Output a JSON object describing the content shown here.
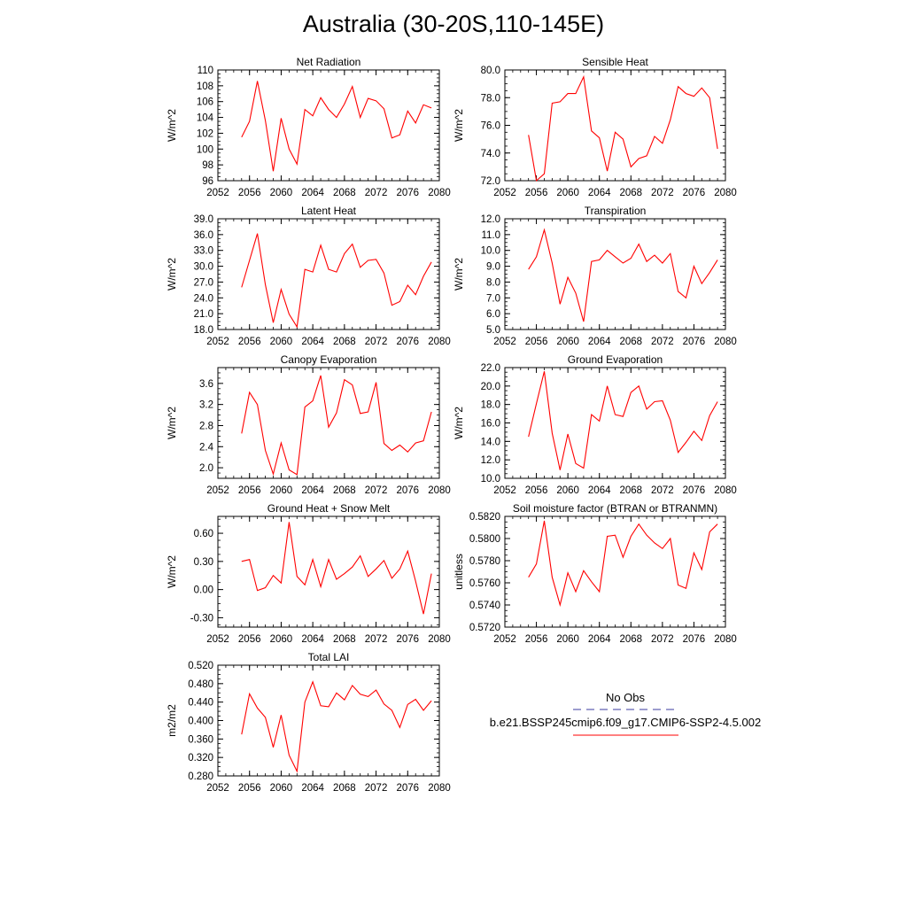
{
  "title": "Australia (30-20S,110-145E)",
  "colors": {
    "model": "#ff0000",
    "obs": "#3b3b9f",
    "axis": "#000000"
  },
  "legend": {
    "obs_label": "No Obs",
    "model_label": "b.e21.BSSP245cmip6.f09_g17.CMIP6-SSP2-4.5.002"
  },
  "chart_data": [
    {
      "type": "line",
      "title": "Net Radiation",
      "ylabel": "W/m^2",
      "xlim": [
        2052,
        2080
      ],
      "ylim": [
        96,
        110
      ],
      "x_ticks": [
        "2052",
        "2056",
        "2060",
        "2064",
        "2068",
        "2072",
        "2076",
        "2080"
      ],
      "y_ticks": [
        "96",
        "98",
        "100",
        "102",
        "104",
        "106",
        "108",
        "110"
      ],
      "series": [
        {
          "x": [
            2055,
            2056,
            2057,
            2058,
            2059,
            2060,
            2061,
            2062,
            2063,
            2064,
            2065,
            2066,
            2067,
            2068,
            2069,
            2070,
            2071,
            2072,
            2073,
            2074,
            2075,
            2076,
            2077,
            2078,
            2079
          ],
          "values": [
            101.5,
            103.5,
            108.6,
            103.6,
            97.2,
            103.9,
            100.0,
            98.1,
            105.0,
            104.2,
            106.5,
            105.0,
            104.0,
            105.7,
            107.9,
            104.0,
            106.4,
            106.1,
            105.1,
            101.4,
            101.8,
            104.8,
            103.3,
            105.6,
            105.2
          ]
        }
      ]
    },
    {
      "type": "line",
      "title": "Sensible Heat",
      "ylabel": "W/m^2",
      "xlim": [
        2052,
        2080
      ],
      "ylim": [
        72.0,
        80.0
      ],
      "x_ticks": [
        "2052",
        "2056",
        "2060",
        "2064",
        "2068",
        "2072",
        "2076",
        "2080"
      ],
      "y_ticks": [
        "72.0",
        "74.0",
        "76.0",
        "78.0",
        "80.0"
      ],
      "series": [
        {
          "x": [
            2055,
            2056,
            2057,
            2058,
            2059,
            2060,
            2061,
            2062,
            2063,
            2064,
            2065,
            2066,
            2067,
            2068,
            2069,
            2070,
            2071,
            2072,
            2073,
            2074,
            2075,
            2076,
            2077,
            2078,
            2079
          ],
          "values": [
            75.3,
            72.0,
            72.5,
            77.6,
            77.7,
            78.3,
            78.3,
            79.5,
            75.6,
            75.1,
            72.7,
            75.5,
            75.0,
            73.0,
            73.6,
            73.8,
            75.2,
            74.7,
            76.4,
            78.8,
            78.3,
            78.1,
            78.7,
            78.0,
            74.3
          ]
        }
      ]
    },
    {
      "type": "line",
      "title": "Latent Heat",
      "ylabel": "W/m^2",
      "xlim": [
        2052,
        2080
      ],
      "ylim": [
        18.0,
        39.0
      ],
      "x_ticks": [
        "2052",
        "2056",
        "2060",
        "2064",
        "2068",
        "2072",
        "2076",
        "2080"
      ],
      "y_ticks": [
        "18.0",
        "21.0",
        "24.0",
        "27.0",
        "30.0",
        "33.0",
        "36.0",
        "39.0"
      ],
      "series": [
        {
          "x": [
            2055,
            2056,
            2057,
            2058,
            2059,
            2060,
            2061,
            2062,
            2063,
            2064,
            2065,
            2066,
            2067,
            2068,
            2069,
            2070,
            2071,
            2072,
            2073,
            2074,
            2075,
            2076,
            2077,
            2078,
            2079
          ],
          "values": [
            26.0,
            31.1,
            36.2,
            26.5,
            19.3,
            25.6,
            20.9,
            18.5,
            29.4,
            28.9,
            34.0,
            29.4,
            28.9,
            32.4,
            34.2,
            29.8,
            31.1,
            31.3,
            28.7,
            22.6,
            23.3,
            26.4,
            24.6,
            28.1,
            30.8
          ]
        }
      ]
    },
    {
      "type": "line",
      "title": "Transpiration",
      "ylabel": "W/m^2",
      "xlim": [
        2052,
        2080
      ],
      "ylim": [
        5.0,
        12.0
      ],
      "x_ticks": [
        "2052",
        "2056",
        "2060",
        "2064",
        "2068",
        "2072",
        "2076",
        "2080"
      ],
      "y_ticks": [
        "5.0",
        "6.0",
        "7.0",
        "8.0",
        "9.0",
        "10.0",
        "11.0",
        "12.0"
      ],
      "series": [
        {
          "x": [
            2055,
            2056,
            2057,
            2058,
            2059,
            2060,
            2061,
            2062,
            2063,
            2064,
            2065,
            2066,
            2067,
            2068,
            2069,
            2070,
            2071,
            2072,
            2073,
            2074,
            2075,
            2076,
            2077,
            2078,
            2079
          ],
          "values": [
            8.8,
            9.6,
            11.3,
            9.2,
            6.6,
            8.3,
            7.3,
            5.5,
            9.3,
            9.4,
            10.0,
            9.6,
            9.2,
            9.5,
            10.4,
            9.3,
            9.7,
            9.2,
            9.8,
            7.4,
            7.0,
            9.0,
            7.9,
            8.6,
            9.4
          ]
        }
      ]
    },
    {
      "type": "line",
      "title": "Canopy Evaporation",
      "ylabel": "W/m^2",
      "xlim": [
        2052,
        2080
      ],
      "ylim": [
        1.8,
        3.9
      ],
      "x_ticks": [
        "2052",
        "2056",
        "2060",
        "2064",
        "2068",
        "2072",
        "2076",
        "2080"
      ],
      "y_ticks": [
        "2.0",
        "2.4",
        "2.8",
        "3.2",
        "3.6"
      ],
      "series": [
        {
          "x": [
            2055,
            2056,
            2057,
            2058,
            2059,
            2060,
            2061,
            2062,
            2063,
            2064,
            2065,
            2066,
            2067,
            2068,
            2069,
            2070,
            2071,
            2072,
            2073,
            2074,
            2075,
            2076,
            2077,
            2078,
            2079
          ],
          "values": [
            2.65,
            3.43,
            3.2,
            2.33,
            1.88,
            2.47,
            1.96,
            1.87,
            3.15,
            3.27,
            3.75,
            2.77,
            3.04,
            3.67,
            3.57,
            3.03,
            3.06,
            3.62,
            2.46,
            2.33,
            2.43,
            2.3,
            2.47,
            2.51,
            3.06
          ]
        }
      ]
    },
    {
      "type": "line",
      "title": "Ground Evaporation",
      "ylabel": "W/m^2",
      "xlim": [
        2052,
        2080
      ],
      "ylim": [
        10.0,
        22.0
      ],
      "x_ticks": [
        "2052",
        "2056",
        "2060",
        "2064",
        "2068",
        "2072",
        "2076",
        "2080"
      ],
      "y_ticks": [
        "10.0",
        "12.0",
        "14.0",
        "16.0",
        "18.0",
        "20.0",
        "22.0"
      ],
      "series": [
        {
          "x": [
            2055,
            2056,
            2057,
            2058,
            2059,
            2060,
            2061,
            2062,
            2063,
            2064,
            2065,
            2066,
            2067,
            2068,
            2069,
            2070,
            2071,
            2072,
            2073,
            2074,
            2075,
            2076,
            2077,
            2078,
            2079
          ],
          "values": [
            14.5,
            18.1,
            21.6,
            14.9,
            10.9,
            14.8,
            11.6,
            11.1,
            16.9,
            16.2,
            20.0,
            16.9,
            16.7,
            19.3,
            20.0,
            17.5,
            18.3,
            18.4,
            16.3,
            12.8,
            13.9,
            15.1,
            14.1,
            16.8,
            18.3
          ]
        }
      ]
    },
    {
      "type": "line",
      "title": "Ground Heat + Snow Melt",
      "ylabel": "W/m^2",
      "xlim": [
        2052,
        2080
      ],
      "ylim": [
        -0.4,
        0.78
      ],
      "x_ticks": [
        "2052",
        "2056",
        "2060",
        "2064",
        "2068",
        "2072",
        "2076",
        "2080"
      ],
      "y_ticks": [
        "-0.30",
        "0.00",
        "0.30",
        "0.60"
      ],
      "series": [
        {
          "x": [
            2055,
            2056,
            2057,
            2058,
            2059,
            2060,
            2061,
            2062,
            2063,
            2064,
            2065,
            2066,
            2067,
            2068,
            2069,
            2070,
            2071,
            2072,
            2073,
            2074,
            2075,
            2076,
            2077,
            2078,
            2079
          ],
          "values": [
            0.3,
            0.32,
            -0.01,
            0.02,
            0.15,
            0.07,
            0.72,
            0.14,
            0.05,
            0.32,
            0.03,
            0.32,
            0.11,
            0.17,
            0.24,
            0.36,
            0.14,
            0.22,
            0.31,
            0.12,
            0.22,
            0.41,
            0.09,
            -0.26,
            0.17
          ]
        }
      ]
    },
    {
      "type": "line",
      "title": "Soil moisture factor (BTRAN or BTRANMN)",
      "ylabel": "unitless",
      "xlim": [
        2052,
        2080
      ],
      "ylim": [
        0.572,
        0.582
      ],
      "x_ticks": [
        "2052",
        "2056",
        "2060",
        "2064",
        "2068",
        "2072",
        "2076",
        "2080"
      ],
      "y_ticks": [
        "0.5720",
        "0.5740",
        "0.5760",
        "0.5780",
        "0.5800",
        "0.5820"
      ],
      "series": [
        {
          "x": [
            2055,
            2056,
            2057,
            2058,
            2059,
            2060,
            2061,
            2062,
            2063,
            2064,
            2065,
            2066,
            2067,
            2068,
            2069,
            2070,
            2071,
            2072,
            2073,
            2074,
            2075,
            2076,
            2077,
            2078,
            2079
          ],
          "values": [
            0.5765,
            0.5777,
            0.5816,
            0.5765,
            0.574,
            0.5769,
            0.5752,
            0.5771,
            0.5761,
            0.5752,
            0.5802,
            0.5803,
            0.5783,
            0.5802,
            0.5813,
            0.5803,
            0.5796,
            0.5791,
            0.58,
            0.5758,
            0.5755,
            0.5787,
            0.5772,
            0.5806,
            0.5813
          ]
        }
      ]
    },
    {
      "type": "line",
      "title": "Total LAI",
      "ylabel": "m2/m2",
      "xlim": [
        2052,
        2080
      ],
      "ylim": [
        0.28,
        0.52
      ],
      "x_ticks": [
        "2052",
        "2056",
        "2060",
        "2064",
        "2068",
        "2072",
        "2076",
        "2080"
      ],
      "y_ticks": [
        "0.280",
        "0.320",
        "0.360",
        "0.400",
        "0.440",
        "0.480",
        "0.520"
      ],
      "series": [
        {
          "x": [
            2055,
            2056,
            2057,
            2058,
            2059,
            2060,
            2061,
            2062,
            2063,
            2064,
            2065,
            2066,
            2067,
            2068,
            2069,
            2070,
            2071,
            2072,
            2073,
            2074,
            2075,
            2076,
            2077,
            2078,
            2079
          ],
          "values": [
            0.37,
            0.458,
            0.427,
            0.407,
            0.342,
            0.412,
            0.325,
            0.29,
            0.44,
            0.484,
            0.432,
            0.43,
            0.46,
            0.445,
            0.476,
            0.457,
            0.452,
            0.466,
            0.436,
            0.422,
            0.385,
            0.435,
            0.446,
            0.422,
            0.443
          ]
        }
      ]
    }
  ]
}
